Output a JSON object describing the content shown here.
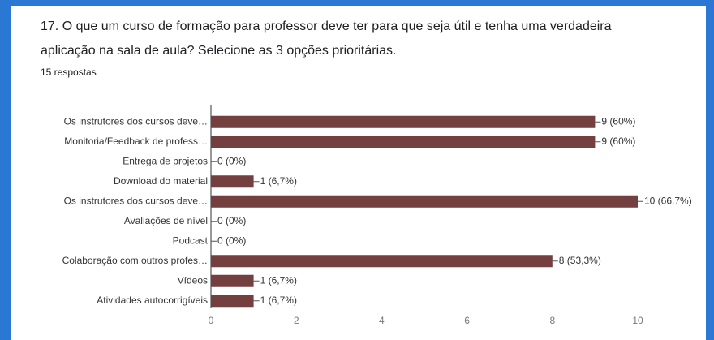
{
  "chart_data": {
    "type": "bar",
    "orientation": "horizontal",
    "title": "17. O que um curso de formação para professor deve ter para que seja útil e tenha uma verdadeira aplicação na sala de aula? Selecione as 3 opções prioritárias.",
    "subtitle": "15 respostas",
    "categories": [
      "Os instrutores dos cursos deve…",
      "Monitoria/Feedback de profess…",
      "Entrega de projetos",
      "Download do material",
      "Os instrutores dos cursos deve…",
      "Avaliações de nível",
      "Podcast",
      "Colaboração com outros profes…",
      "Vídeos",
      "Atividades autocorrigíveis"
    ],
    "values": [
      9,
      9,
      0,
      1,
      10,
      0,
      0,
      8,
      1,
      1
    ],
    "value_labels": [
      "9 (60%)",
      "9 (60%)",
      "0 (0%)",
      "1 (6,7%)",
      "10 (66,7%)",
      "0 (0%)",
      "0 (0%)",
      "8 (53,3%)",
      "1 (6,7%)",
      "1 (6,7%)"
    ],
    "color": "#743f3f",
    "xlim": [
      0,
      10
    ],
    "xticks": [
      0,
      2,
      4,
      6,
      8,
      10
    ],
    "grid": false
  }
}
